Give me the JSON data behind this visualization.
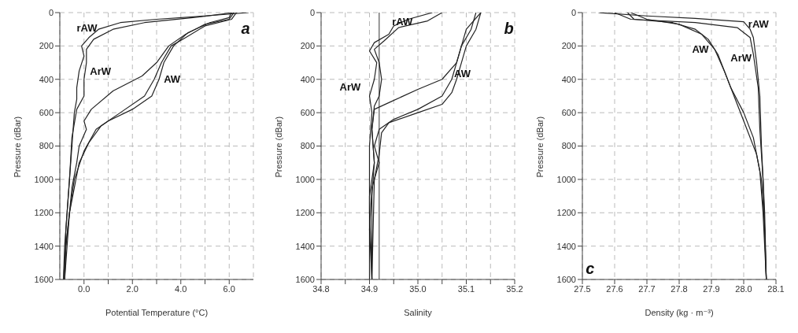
{
  "chart_data": [
    {
      "type": "line",
      "xlabel": "Potential Temperature (°C)",
      "ylabel": "Pressure (dBar)",
      "xlim": [
        -1,
        7
      ],
      "ylim": [
        1600,
        0
      ],
      "xticks": [
        {
          "value": 0,
          "label": "0.0"
        },
        {
          "value": 1,
          "label": null
        },
        {
          "value": 2,
          "label": "2.0"
        },
        {
          "value": 3,
          "label": null
        },
        {
          "value": 4,
          "label": "4.0"
        },
        {
          "value": 5,
          "label": null
        },
        {
          "value": 6,
          "label": "6.0"
        }
      ],
      "yticks": [
        0,
        200,
        400,
        600,
        800,
        1000,
        1200,
        1400,
        1600
      ],
      "grid": true,
      "marker": "none",
      "line_style": "solid",
      "series": [
        {
          "color": "#222222",
          "x": [
            6.8,
            5,
            3,
            1.5,
            0.6,
            0.2,
            -0.1,
            0,
            -0.2,
            -0.3,
            -0.3,
            -0.4,
            -0.5,
            -0.6,
            -0.7,
            -0.8,
            -0.85
          ],
          "values": [
            0,
            20,
            40,
            60,
            100,
            150,
            200,
            260,
            350,
            450,
            520,
            600,
            800,
            1000,
            1200,
            1400,
            1600
          ]
        },
        {
          "color": "#222222",
          "x": [
            6.2,
            4.5,
            2.5,
            1.2,
            0.4,
            0.1,
            0.1,
            0,
            0,
            -0.3,
            -0.5,
            -0.6,
            -0.75,
            -0.8
          ],
          "values": [
            0,
            30,
            60,
            100,
            160,
            220,
            300,
            400,
            500,
            580,
            750,
            1000,
            1300,
            1600
          ]
        },
        {
          "color": "#222222",
          "x": [
            6.2,
            6.0,
            5,
            4.2,
            3.5,
            3.0,
            2.4,
            1.2,
            0.3,
            0,
            0.1,
            -0.2,
            -0.3,
            -0.5,
            -0.6,
            -0.75,
            -0.8
          ],
          "values": [
            0,
            40,
            70,
            130,
            200,
            300,
            380,
            470,
            580,
            650,
            700,
            800,
            900,
            1050,
            1200,
            1400,
            1600
          ]
        },
        {
          "color": "#222222",
          "x": [
            6.3,
            6.1,
            5,
            4.2,
            3.6,
            3.2,
            2.9,
            2.5,
            1.5,
            0.7,
            0.2,
            -0.2,
            -0.4,
            -0.6,
            -0.75,
            -0.85
          ],
          "values": [
            0,
            40,
            80,
            150,
            200,
            300,
            400,
            500,
            600,
            680,
            780,
            900,
            1050,
            1200,
            1400,
            1600
          ]
        },
        {
          "color": "#222222",
          "x": [
            6.1,
            6,
            5.2,
            4.3,
            3.7,
            3.3,
            3.1,
            2.8,
            2,
            1,
            0.5,
            0,
            -0.4,
            -0.6,
            -0.8
          ],
          "values": [
            0,
            30,
            60,
            120,
            200,
            300,
            400,
            500,
            580,
            650,
            700,
            830,
            1000,
            1200,
            1600
          ]
        }
      ],
      "annotations": [
        "rAW",
        "ArW",
        "AW",
        "a"
      ]
    },
    {
      "type": "line",
      "xlabel": "Salinity",
      "ylabel": "Pressure (dBar)",
      "xlim": [
        34.8,
        35.2
      ],
      "ylim": [
        1600,
        0
      ],
      "xticks": [
        34.8,
        {
          "value": 34.85,
          "label": null
        },
        34.9,
        {
          "value": 34.95,
          "label": null
        },
        {
          "value": 35.0,
          "label": "35.0"
        },
        {
          "value": 35.05,
          "label": null
        },
        35.1,
        {
          "value": 35.15,
          "label": null
        },
        35.2
      ],
      "yticks": [
        0,
        200,
        400,
        600,
        800,
        1000,
        1200,
        1400,
        1600
      ],
      "grid": true,
      "marker": "none",
      "line_style": "solid",
      "series": [
        {
          "color": "#222222",
          "x": [
            35.03,
            34.98,
            34.95,
            34.94,
            34.91,
            34.9,
            34.915,
            34.91,
            34.9,
            34.905,
            34.9,
            34.9,
            34.9,
            34.903,
            34.905
          ],
          "values": [
            0,
            40,
            80,
            130,
            180,
            230,
            300,
            400,
            500,
            600,
            800,
            1000,
            1200,
            1400,
            1600
          ]
        },
        {
          "color": "#222222",
          "x": [
            35.05,
            35.02,
            34.96,
            34.93,
            34.91,
            34.92,
            34.925,
            34.92,
            34.91,
            34.905,
            34.91,
            34.905,
            34.905
          ],
          "values": [
            0,
            50,
            90,
            170,
            220,
            300,
            400,
            500,
            560,
            700,
            900,
            1100,
            1600
          ]
        },
        {
          "color": "#222222",
          "x": [
            35.13,
            35.1,
            35.09,
            35.08,
            35.05,
            35.0,
            34.94,
            34.91,
            34.905,
            34.91,
            34.9,
            34.9
          ],
          "values": [
            0,
            100,
            200,
            300,
            400,
            460,
            540,
            580,
            700,
            900,
            1100,
            1600
          ]
        },
        {
          "color": "#222222",
          "x": [
            35.12,
            35.11,
            35.09,
            35.08,
            35.07,
            35.05,
            35.0,
            34.95,
            34.92,
            34.91,
            34.92,
            34.905,
            34.9,
            34.905
          ],
          "values": [
            0,
            100,
            200,
            300,
            400,
            500,
            580,
            640,
            700,
            800,
            900,
            1050,
            1300,
            1600
          ]
        },
        {
          "color": "#222222",
          "x": [
            35.13,
            35.12,
            35.1,
            35.09,
            35.08,
            35.07,
            35.05,
            35.0,
            34.94,
            34.925,
            34.92,
            34.91,
            34.905
          ],
          "values": [
            0,
            100,
            200,
            300,
            400,
            480,
            550,
            600,
            660,
            720,
            850,
            1000,
            1600
          ]
        }
      ],
      "ref_lines": [
        {
          "axis": "x",
          "value": 34.92,
          "color": "#555555"
        }
      ],
      "annotations": [
        "rAW",
        "ArW",
        "AW",
        "b"
      ]
    },
    {
      "type": "line",
      "xlabel": "Density (kg · m⁻³)",
      "ylabel": "Pressure (dBar)",
      "xlim": [
        27.5,
        28.1
      ],
      "ylim": [
        1600,
        0
      ],
      "xticks": [
        27.5,
        27.6,
        27.7,
        27.8,
        27.9,
        {
          "value": 28.0,
          "label": "28.0"
        },
        28.1
      ],
      "yticks": [
        0,
        200,
        400,
        600,
        800,
        1000,
        1200,
        1400,
        1600
      ],
      "grid": true,
      "marker": "none",
      "line_style": "solid",
      "series": [
        {
          "color": "#222222",
          "x": [
            27.55,
            27.7,
            27.85,
            28.0,
            28.02,
            28.03,
            28.04,
            28.05,
            28.055,
            28.06,
            28.065,
            28.07
          ],
          "values": [
            0,
            20,
            35,
            55,
            100,
            150,
            300,
            500,
            800,
            1000,
            1200,
            1600
          ]
        },
        {
          "color": "#222222",
          "x": [
            27.6,
            27.65,
            27.85,
            27.98,
            28.02,
            28.03,
            28.045,
            28.05,
            28.06,
            28.07
          ],
          "values": [
            0,
            40,
            60,
            90,
            150,
            250,
            450,
            700,
            1000,
            1600
          ]
        },
        {
          "color": "#222222",
          "x": [
            27.64,
            27.66,
            27.78,
            27.85,
            27.89,
            27.92,
            27.95,
            27.98,
            28.01,
            28.04,
            28.055,
            28.065,
            28.07
          ],
          "values": [
            0,
            40,
            60,
            100,
            160,
            250,
            400,
            550,
            700,
            850,
            1000,
            1300,
            1600
          ]
        },
        {
          "color": "#222222",
          "x": [
            27.65,
            27.7,
            27.8,
            27.87,
            27.91,
            27.94,
            27.96,
            28.0,
            28.03,
            28.05,
            28.06,
            28.07
          ],
          "values": [
            0,
            40,
            70,
            130,
            220,
            350,
            450,
            600,
            750,
            950,
            1200,
            1600
          ]
        }
      ],
      "annotations": [
        "rAW",
        "AW",
        "ArW",
        "c"
      ]
    }
  ]
}
